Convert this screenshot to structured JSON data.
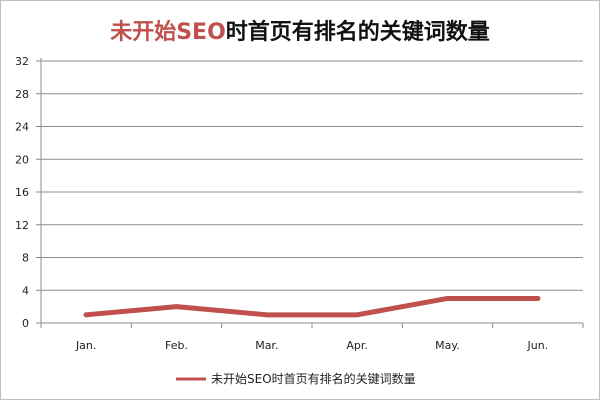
{
  "chart_data": {
    "type": "line",
    "title_accent": "未开始SEO",
    "title_rest": "时首页有排名的关键词数量",
    "xlabel": "",
    "ylabel": "",
    "categories": [
      "Jan.",
      "Feb.",
      "Mar.",
      "Apr.",
      "May.",
      "Jun."
    ],
    "series": [
      {
        "name": "未开始SEO时首页有排名的关键词数量",
        "values": [
          1,
          2,
          1,
          1,
          3,
          3
        ],
        "color": "#c0504d"
      }
    ],
    "ylim": [
      0,
      32
    ],
    "yticks": [
      "0",
      "4",
      "8",
      "12",
      "16",
      "20",
      "24",
      "28",
      "32"
    ],
    "grid": true,
    "legend": "bottom"
  }
}
